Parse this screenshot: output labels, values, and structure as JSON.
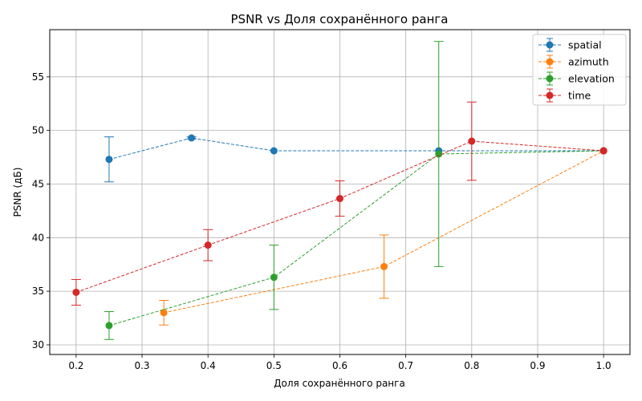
{
  "chart_data": {
    "type": "line",
    "title": "PSNR vs Доля сохранённого ранга",
    "xlabel": "Доля сохранённого ранга",
    "ylabel": "PSNR (дБ)",
    "xlim": [
      0.16,
      1.04
    ],
    "ylim": [
      29.1,
      59.4
    ],
    "xticks": [
      "0.2",
      "0.3",
      "0.4",
      "0.5",
      "0.6",
      "0.7",
      "0.8",
      "0.9",
      "1.0"
    ],
    "yticks": [
      "30",
      "35",
      "40",
      "45",
      "50",
      "55"
    ],
    "grid": true,
    "legend_position": "top-right",
    "series": [
      {
        "name": "spatial",
        "color": "#1f77b4",
        "x": [
          0.25,
          0.375,
          0.5,
          0.75,
          1.0
        ],
        "y": [
          47.3,
          49.3,
          48.1,
          48.1,
          48.1
        ],
        "err": [
          2.1,
          0.1,
          0.0,
          0.0,
          0.0
        ]
      },
      {
        "name": "azimuth",
        "color": "#ff7f0e",
        "x": [
          0.333,
          0.667,
          1.0
        ],
        "y": [
          33.0,
          37.3,
          48.1
        ],
        "err": [
          1.15,
          2.95,
          0.0
        ]
      },
      {
        "name": "elevation",
        "color": "#2ca02c",
        "x": [
          0.25,
          0.5,
          0.75,
          1.0
        ],
        "y": [
          31.8,
          36.3,
          47.8,
          48.1
        ],
        "err": [
          1.3,
          3.0,
          10.5,
          0.0
        ]
      },
      {
        "name": "time",
        "color": "#d62728",
        "x": [
          0.2,
          0.4,
          0.6,
          0.8,
          1.0
        ],
        "y": [
          34.9,
          39.3,
          43.65,
          49.0,
          48.1
        ],
        "err": [
          1.2,
          1.45,
          1.65,
          3.65,
          0.0
        ]
      }
    ]
  }
}
